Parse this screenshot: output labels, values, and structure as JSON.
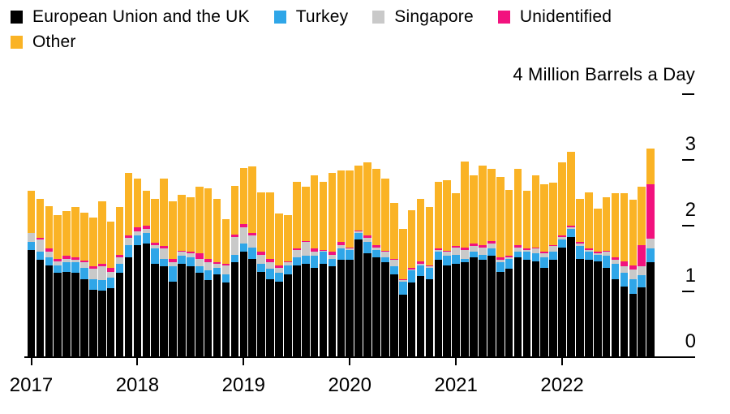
{
  "chart_data": {
    "type": "bar",
    "stacked": true,
    "title": "",
    "axis_title": "4 Million Barrels a Day",
    "unit": "million barrels a day",
    "ylim": [
      0,
      4
    ],
    "yticks": [
      0,
      1,
      2,
      3
    ],
    "ydash_values": [
      1,
      2,
      3,
      4
    ],
    "grid": false,
    "legend_position": "top-left",
    "x_years": [
      "2017",
      "2018",
      "2019",
      "2020",
      "2021",
      "2022"
    ],
    "months": [
      "2017-01",
      "2017-02",
      "2017-03",
      "2017-04",
      "2017-05",
      "2017-06",
      "2017-07",
      "2017-08",
      "2017-09",
      "2017-10",
      "2017-11",
      "2017-12",
      "2018-01",
      "2018-02",
      "2018-03",
      "2018-04",
      "2018-05",
      "2018-06",
      "2018-07",
      "2018-08",
      "2018-09",
      "2018-10",
      "2018-11",
      "2018-12",
      "2019-01",
      "2019-02",
      "2019-03",
      "2019-04",
      "2019-05",
      "2019-06",
      "2019-07",
      "2019-08",
      "2019-09",
      "2019-10",
      "2019-11",
      "2019-12",
      "2020-01",
      "2020-02",
      "2020-03",
      "2020-04",
      "2020-05",
      "2020-06",
      "2020-07",
      "2020-08",
      "2020-09",
      "2020-10",
      "2020-11",
      "2020-12",
      "2021-01",
      "2021-02",
      "2021-03",
      "2021-04",
      "2021-05",
      "2021-06",
      "2021-07",
      "2021-08",
      "2021-09",
      "2021-10",
      "2021-11",
      "2021-12",
      "2022-01",
      "2022-02",
      "2022-03",
      "2022-04",
      "2022-05",
      "2022-06",
      "2022-07",
      "2022-08",
      "2022-09",
      "2022-10",
      "2022-11"
    ],
    "series": [
      {
        "name": "European Union and the UK",
        "slug": "eu-uk",
        "color": "#000000",
        "values": [
          1.63,
          1.48,
          1.4,
          1.28,
          1.3,
          1.28,
          1.19,
          1.03,
          1.01,
          1.05,
          1.28,
          1.52,
          1.71,
          1.73,
          1.42,
          1.38,
          1.15,
          1.42,
          1.38,
          1.28,
          1.17,
          1.26,
          1.13,
          1.44,
          1.6,
          1.5,
          1.3,
          1.19,
          1.15,
          1.26,
          1.4,
          1.42,
          1.36,
          1.42,
          1.38,
          1.48,
          1.48,
          1.79,
          1.58,
          1.52,
          1.44,
          1.26,
          0.95,
          1.13,
          1.23,
          1.19,
          1.48,
          1.4,
          1.42,
          1.44,
          1.52,
          1.48,
          1.54,
          1.3,
          1.34,
          1.52,
          1.48,
          1.46,
          1.36,
          1.48,
          1.67,
          1.83,
          1.5,
          1.48,
          1.46,
          1.36,
          1.19,
          1.08,
          0.96,
          1.06,
          1.45
        ]
      },
      {
        "name": "Turkey",
        "slug": "turkey",
        "color": "#2fa6e8",
        "values": [
          0.12,
          0.12,
          0.12,
          0.12,
          0.14,
          0.16,
          0.17,
          0.16,
          0.16,
          0.16,
          0.14,
          0.18,
          0.14,
          0.16,
          0.23,
          0.12,
          0.23,
          0.12,
          0.14,
          0.1,
          0.15,
          0.1,
          0.13,
          0.12,
          0.13,
          0.17,
          0.12,
          0.15,
          0.13,
          0.14,
          0.12,
          0.12,
          0.18,
          0.18,
          0.12,
          0.17,
          0.15,
          0.1,
          0.17,
          0.11,
          0.08,
          0.12,
          0.2,
          0.19,
          0.17,
          0.17,
          0.12,
          0.14,
          0.14,
          0.06,
          0.08,
          0.08,
          0.11,
          0.14,
          0.16,
          0.08,
          0.12,
          0.12,
          0.16,
          0.12,
          0.12,
          0.12,
          0.19,
          0.12,
          0.1,
          0.18,
          0.23,
          0.2,
          0.23,
          0.19,
          0.2
        ]
      },
      {
        "name": "Singapore",
        "slug": "singapore",
        "color": "#c9c9c9",
        "values": [
          0.14,
          0.19,
          0.08,
          0.06,
          0.06,
          0.04,
          0.08,
          0.15,
          0.21,
          0.09,
          0.1,
          0.11,
          0.06,
          0.06,
          0.06,
          0.15,
          0.06,
          0.06,
          0.06,
          0.12,
          0.12,
          0.06,
          0.14,
          0.27,
          0.25,
          0.18,
          0.14,
          0.1,
          0.08,
          0.04,
          0.11,
          0.21,
          0.06,
          0.02,
          0.06,
          0.06,
          0.02,
          0.02,
          0.06,
          0.04,
          0.08,
          0.1,
          0.02,
          0.02,
          0.02,
          0.02,
          0.03,
          0.06,
          0.11,
          0.13,
          0.09,
          0.11,
          0.08,
          0.04,
          0.02,
          0.07,
          0.03,
          0.07,
          0.06,
          0.09,
          0.04,
          0.03,
          0.04,
          0.03,
          0.02,
          0.06,
          0.06,
          0.1,
          0.14,
          0.13,
          0.15
        ]
      },
      {
        "name": "Unidentified",
        "slug": "unidentified",
        "color": "#f2127e",
        "values": [
          0.0,
          0.02,
          0.05,
          0.04,
          0.04,
          0.04,
          0.03,
          0.04,
          0.04,
          0.06,
          0.04,
          0.04,
          0.07,
          0.05,
          0.03,
          0.04,
          0.06,
          0.02,
          0.02,
          0.08,
          0.06,
          0.02,
          0.02,
          0.04,
          0.04,
          0.04,
          0.04,
          0.06,
          0.04,
          0.02,
          0.02,
          0.02,
          0.05,
          0.01,
          0.04,
          0.04,
          0.02,
          0.02,
          0.04,
          0.04,
          0.02,
          0.02,
          0.02,
          0.02,
          0.04,
          0.02,
          0.02,
          0.02,
          0.02,
          0.04,
          0.04,
          0.04,
          0.04,
          0.04,
          0.02,
          0.04,
          0.02,
          0.02,
          0.02,
          0.02,
          0.02,
          0.02,
          0.02,
          0.02,
          0.02,
          0.02,
          0.04,
          0.08,
          0.07,
          0.32,
          0.83
        ]
      },
      {
        "name": "Other",
        "slug": "other",
        "color": "#fab325",
        "values": [
          0.64,
          0.6,
          0.65,
          0.66,
          0.68,
          0.76,
          0.73,
          0.74,
          0.95,
          0.7,
          0.72,
          0.95,
          0.74,
          0.53,
          0.67,
          1.03,
          0.87,
          0.85,
          0.83,
          1.01,
          1.07,
          0.97,
          0.68,
          0.74,
          0.86,
          1.01,
          0.91,
          1.01,
          0.78,
          0.7,
          1.02,
          0.82,
          1.11,
          1.04,
          1.2,
          1.09,
          1.17,
          0.99,
          1.11,
          1.15,
          1.1,
          0.85,
          0.76,
          0.88,
          0.95,
          0.88,
          1.02,
          1.07,
          0.8,
          1.31,
          1.03,
          1.21,
          1.09,
          1.22,
          1.01,
          1.15,
          0.88,
          1.09,
          1.03,
          0.94,
          1.11,
          1.13,
          0.66,
          0.86,
          0.66,
          0.81,
          0.97,
          1.03,
          1.0,
          0.89,
          0.54
        ]
      }
    ]
  }
}
